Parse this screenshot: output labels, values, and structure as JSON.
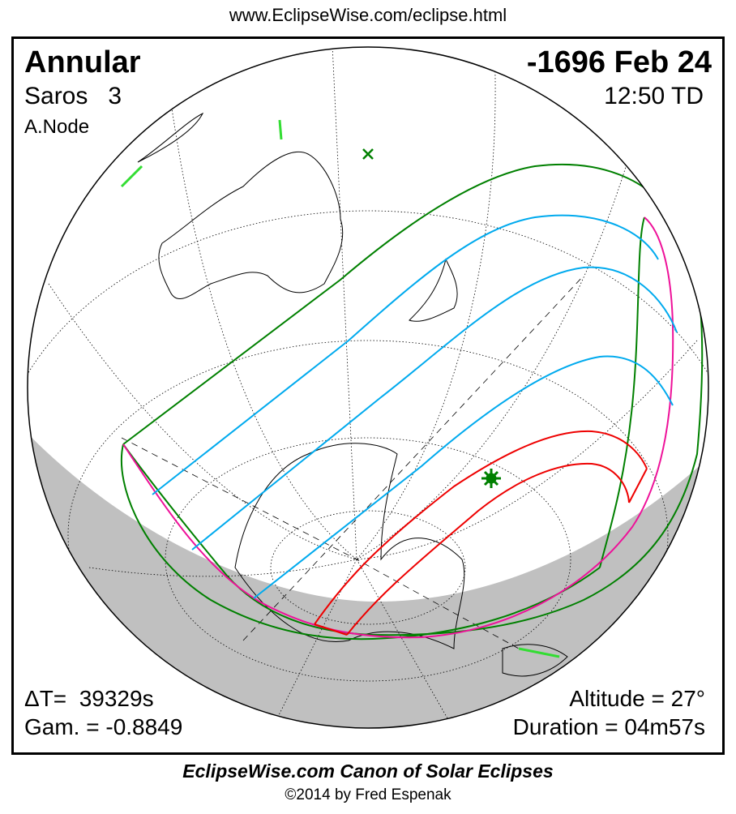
{
  "header": {
    "url": "www.EclipseWise.com/eclipse.html"
  },
  "eclipse": {
    "type": "Annular",
    "date": "-1696 Feb 24",
    "saros": "Saros   3",
    "time": "12:50 TD",
    "node": "A.Node",
    "delta_t": "ΔT=  39329s",
    "gamma": "Gam. = -0.8849",
    "altitude": "Altitude = 27°",
    "duration": "Duration = 04m57s"
  },
  "footer": {
    "canon": "EclipseWise.com Canon of Solar Eclipses",
    "copyright": "©2014 by Fred Espenak"
  },
  "colors": {
    "penumbral_limits": "#008000",
    "penumbral_magnitude": "#00aaee",
    "rise_set": "#ee1199",
    "central_path": "#ee0000",
    "night": "#c0c0c0",
    "land_highlight": "#33dd33"
  }
}
